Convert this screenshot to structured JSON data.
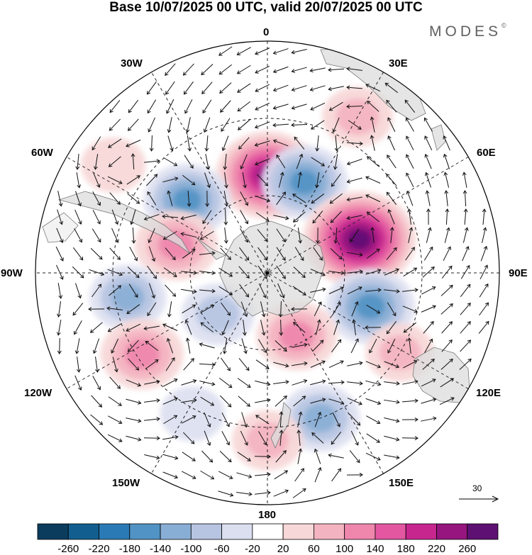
{
  "title": "Base 10/07/2025 00 UTC, valid 20/07/2025 00 UTC",
  "brand": "MODES",
  "brand_mark": "©",
  "longitude_labels": [
    "0",
    "30E",
    "60E",
    "90E",
    "120E",
    "150E",
    "180",
    "150W",
    "120W",
    "90W",
    "60W",
    "30W"
  ],
  "vector_reference": {
    "value": "30"
  },
  "colorbar": {
    "ticks": [
      "-260",
      "-220",
      "-180",
      "-140",
      "-100",
      "-60",
      "-20",
      "20",
      "60",
      "100",
      "140",
      "180",
      "220",
      "260"
    ],
    "colors": [
      "#0b3c5d",
      "#125f8f",
      "#2a7bb5",
      "#5193c4",
      "#89aed5",
      "#b7c5e2",
      "#dcdff0",
      "#ffffff",
      "#f7d7d7",
      "#f4b3c0",
      "#ef87ad",
      "#e356a0",
      "#c7268f",
      "#96157f",
      "#5e1073"
    ]
  },
  "colors": {
    "land": "#dcdcdc",
    "coast": "#7a7a7a",
    "positive_anomaly": "#e356a0",
    "negative_anomaly": "#2a7bb5"
  },
  "anomalies": [
    {
      "id": "pos-0",
      "lon": 0,
      "colat": 38,
      "value": 230
    },
    {
      "id": "neg-20e",
      "lon": 22,
      "colat": 38,
      "value": -150
    },
    {
      "id": "pos-70e",
      "lon": 70,
      "colat": 38,
      "value": 280
    },
    {
      "id": "neg-105e",
      "lon": 108,
      "colat": 42,
      "value": -160
    },
    {
      "id": "pos-150e",
      "lon": 155,
      "colat": 27,
      "value": 120
    },
    {
      "id": "neg-155e",
      "lon": 160,
      "colat": 60,
      "value": -110
    },
    {
      "id": "pos-120e",
      "lon": 121,
      "colat": 60,
      "value": 60
    },
    {
      "id": "pos-180",
      "lon": 180,
      "colat": 65,
      "value": 70
    },
    {
      "id": "neg-45w",
      "lon": -48,
      "colat": 42,
      "value": -150
    },
    {
      "id": "pos-75w",
      "lon": -73,
      "colat": 37,
      "value": 130
    },
    {
      "id": "neg-100w",
      "lon": -100,
      "colat": 55,
      "value": -100
    },
    {
      "id": "pos-120w",
      "lon": -123,
      "colat": 58,
      "value": 130
    },
    {
      "id": "neg-130w",
      "lon": -130,
      "colat": 25,
      "value": -80
    },
    {
      "id": "pos-30e",
      "lon": 30,
      "colat": 70,
      "value": 70
    },
    {
      "id": "pos-45w",
      "lon": -55,
      "colat": 73,
      "value": 40
    },
    {
      "id": "neg-150w",
      "lon": -152,
      "colat": 62,
      "value": -40
    }
  ]
}
